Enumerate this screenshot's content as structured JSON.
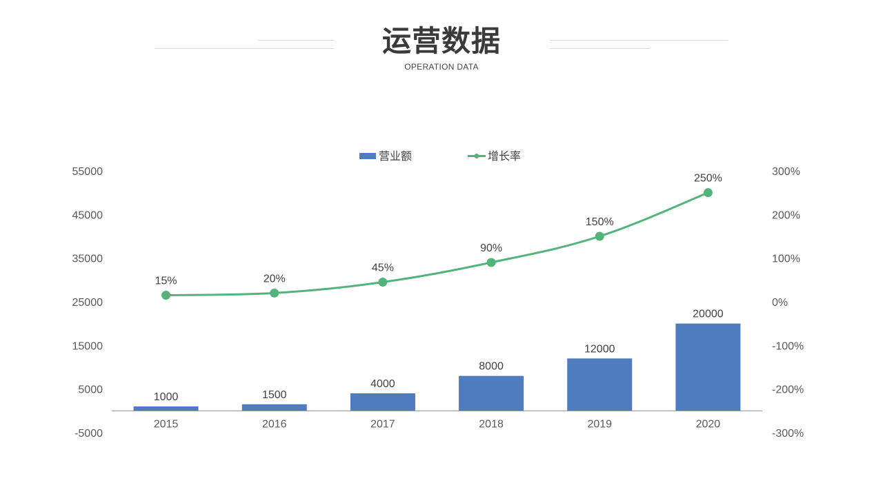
{
  "header": {
    "title": "运营数据",
    "subtitle": "OPERATION DATA"
  },
  "colors": {
    "bar": "#4f7bbf",
    "line": "#52b37b",
    "axis": "#8c8c8c",
    "decoration": "#d9d9d9"
  },
  "chart_data": {
    "type": "bar",
    "categories": [
      "2015",
      "2016",
      "2017",
      "2018",
      "2019",
      "2020"
    ],
    "series": [
      {
        "name": "营业额",
        "type": "bar",
        "axis": "left",
        "values": [
          1000,
          1500,
          4000,
          8000,
          12000,
          20000
        ],
        "labels": [
          "1000",
          "1500",
          "4000",
          "8000",
          "12000",
          "20000"
        ]
      },
      {
        "name": "增长率",
        "type": "line",
        "axis": "right",
        "marker": "circle",
        "values": [
          15,
          20,
          45,
          90,
          150,
          250
        ],
        "labels": [
          "15%",
          "20%",
          "45%",
          "90%",
          "150%",
          "250%"
        ]
      }
    ],
    "y_left": {
      "ylim": [
        -5000,
        55000
      ],
      "ticks": [
        "55000",
        "45000",
        "35000",
        "25000",
        "15000",
        "5000",
        "-5000"
      ]
    },
    "y_right": {
      "ylim": [
        -300,
        300
      ],
      "unit": "%",
      "ticks": [
        "300%",
        "200%",
        "100%",
        "0%",
        "-100%",
        "-200%",
        "-300%"
      ]
    },
    "legend_position": "top-center",
    "grid": false
  }
}
